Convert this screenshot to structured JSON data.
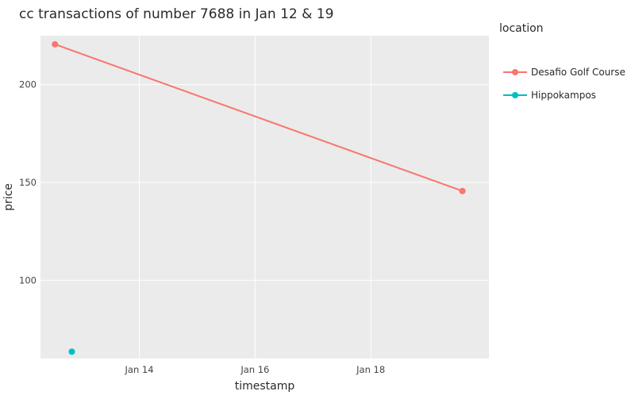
{
  "chart_data": {
    "type": "line",
    "title": "cc transactions of number 7688 in Jan 12 & 19",
    "xlabel": "timestamp",
    "ylabel": "price",
    "x_type": "date",
    "xlim": [
      "2014-01-12T07:00",
      "2014-01-20T01:00"
    ],
    "ylim": [
      60,
      225
    ],
    "x_ticks": [
      {
        "value": "2014-01-14",
        "label": "Jan 14"
      },
      {
        "value": "2014-01-16",
        "label": "Jan 16"
      },
      {
        "value": "2014-01-18",
        "label": "Jan 18"
      }
    ],
    "y_ticks": [
      {
        "value": 100,
        "label": "100"
      },
      {
        "value": 150,
        "label": "150"
      },
      {
        "value": 200,
        "label": "200"
      }
    ],
    "grid": true,
    "legend": {
      "title": "location",
      "position": "right"
    },
    "series": [
      {
        "name": "Desafio Golf Course",
        "color": "#F8766D",
        "mode": "lines+markers",
        "points": [
          {
            "x": "2014-01-12T13:00",
            "y": 220.6
          },
          {
            "x": "2014-01-19T14:00",
            "y": 145.6
          }
        ]
      },
      {
        "name": "Hippokampos",
        "color": "#00BFC4",
        "mode": "markers",
        "points": [
          {
            "x": "2014-01-12T20:00",
            "y": 63.5
          }
        ]
      }
    ],
    "colors": {
      "panel_background": "#EBEBEB",
      "grid": "#FFFFFF",
      "text": "#2A2A2A"
    }
  }
}
